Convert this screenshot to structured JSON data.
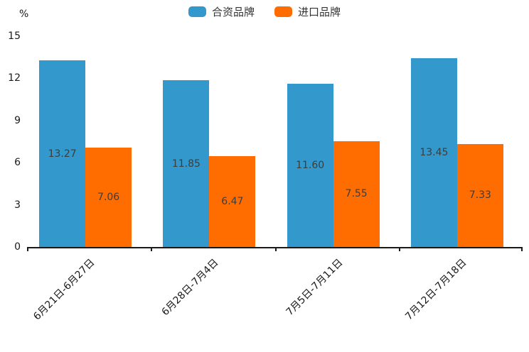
{
  "chart_data": {
    "type": "bar",
    "title": "",
    "ylabel": "%",
    "xlabel": "",
    "categories": [
      "6月21日-6月27日",
      "6月28日-7月4日",
      "7月5日-7月11日",
      "7月12日-7月18日"
    ],
    "series": [
      {
        "name": "合资品牌",
        "color": "#3398cb",
        "values": [
          13.27,
          11.85,
          11.6,
          13.45
        ]
      },
      {
        "name": "进口品牌",
        "color": "#ff6d00",
        "values": [
          7.06,
          6.47,
          7.55,
          7.33
        ]
      }
    ],
    "value_labels": {
      "合资品牌": [
        "13.27",
        "11.85",
        "11.60",
        "13.45"
      ],
      "进口品牌": [
        "7.06",
        "6.47",
        "7.55",
        "7.33"
      ]
    },
    "ylim": [
      0,
      15
    ],
    "yticks": [
      0,
      3,
      6,
      9,
      12,
      15
    ],
    "grid": false,
    "legend_position": "top-center",
    "value_label_decimals": 2
  },
  "colors": {
    "series_blue": "#3398cb",
    "series_orange": "#ff6d00",
    "axis": "#1a1a1a",
    "value_text": "#3d3d3d",
    "background": "#ffffff"
  }
}
